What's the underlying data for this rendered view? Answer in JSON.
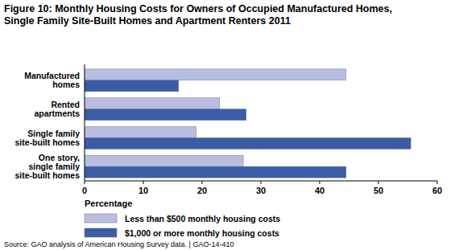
{
  "chart_data": {
    "type": "bar",
    "orientation": "horizontal",
    "title": "Figure 10: Monthly Housing Costs for Owners of Occupied Manufactured Homes,\nSingle Family Site-Built Homes and Apartment Renters 2011",
    "categories": [
      "Manufactured\nhomes",
      "Rented\napartments",
      "Single family\nsite-built homes",
      "One story,\nsingle family\nsite-built homes"
    ],
    "series": [
      {
        "name": "Less than $500 monthly housing costs",
        "color": "#b9bde0",
        "values": [
          44.5,
          23,
          19,
          27
        ]
      },
      {
        "name": "$1,000 or more monthly housing costs",
        "color": "#3c5ca6",
        "values": [
          16,
          27.5,
          55.5,
          44.5
        ]
      }
    ],
    "xlabel": "Percentage",
    "xlim": [
      0,
      60
    ],
    "xticks": [
      0,
      10,
      20,
      30,
      40,
      50,
      60
    ],
    "grid": false,
    "legend": "bottom",
    "source": "Source: GAO analysis of American Housing Survey data. | GAO-14-410"
  }
}
